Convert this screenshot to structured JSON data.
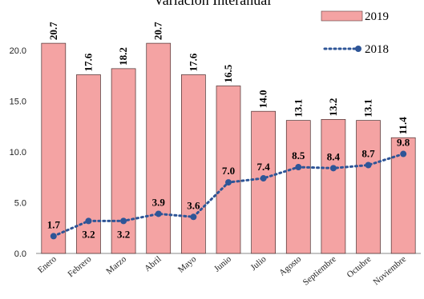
{
  "chart_data": {
    "type": "bar",
    "title": "Variación Interanual",
    "xlabel": "",
    "ylabel": "",
    "ylim": [
      0,
      20
    ],
    "yticks": [
      "0.0",
      "5.0",
      "10.0",
      "15.0",
      "20.0"
    ],
    "grid": false,
    "legend": "top-right",
    "categories": [
      "Enero",
      "Febrero",
      "Marzo",
      "Abril",
      "Mayo",
      "Junio",
      "Julio",
      "Agosto",
      "Septiembre",
      "Octubre",
      "Noviembre"
    ],
    "series": [
      {
        "name": "2019",
        "type": "bar",
        "color": "#f4a3a3",
        "values": [
          20.7,
          17.6,
          18.2,
          20.7,
          17.6,
          16.5,
          14.0,
          13.1,
          13.2,
          13.1,
          11.4
        ],
        "labels": [
          "20.7",
          "17.6",
          "18.2",
          "20.7",
          "17.6",
          "16.5",
          "14.0",
          "13.1",
          "13.2",
          "13.1",
          "11.4"
        ]
      },
      {
        "name": "2018",
        "type": "line",
        "color": "#2e5597",
        "values": [
          1.7,
          3.2,
          3.2,
          3.9,
          3.6,
          7.0,
          7.4,
          8.5,
          8.4,
          8.7,
          9.8
        ],
        "labels": [
          "1.7",
          "3.2",
          "3.2",
          "3.9",
          "3.6",
          "7.0",
          "7.4",
          "8.5",
          "8.4",
          "8.7",
          "9.8"
        ]
      }
    ]
  }
}
